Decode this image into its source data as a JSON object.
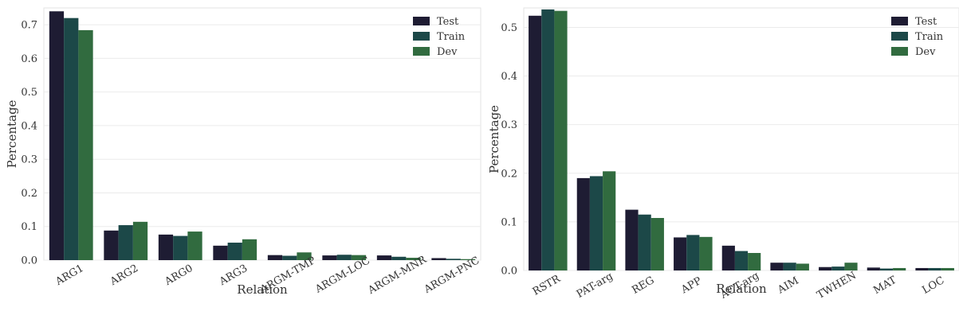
{
  "chart_data": [
    {
      "type": "bar",
      "title": "",
      "xlabel": "Relation",
      "ylabel": "Percentage",
      "categories": [
        "ARG1",
        "ARG2",
        "ARG0",
        "ARG3",
        "ARGM-TMP",
        "ARGM-LOC",
        "ARGM-MNR",
        "ARGM-PNC"
      ],
      "series": [
        {
          "name": "Test",
          "color": "#1e1c33",
          "values": [
            0.74,
            0.088,
            0.076,
            0.043,
            0.015,
            0.014,
            0.014,
            0.006
          ]
        },
        {
          "name": "Train",
          "color": "#1c4848",
          "values": [
            0.72,
            0.104,
            0.072,
            0.052,
            0.013,
            0.016,
            0.01,
            0.004
          ]
        },
        {
          "name": "Dev",
          "color": "#316b3f",
          "values": [
            0.684,
            0.114,
            0.085,
            0.062,
            0.023,
            0.015,
            0.007,
            0.003
          ]
        }
      ],
      "ylim": [
        0,
        0.75
      ],
      "yticks": [
        0.0,
        0.1,
        0.2,
        0.3,
        0.4,
        0.5,
        0.6,
        0.7
      ],
      "ytick_labels": [
        "0.0",
        "0.1",
        "0.2",
        "0.3",
        "0.4",
        "0.5",
        "0.6",
        "0.7"
      ],
      "grid": true,
      "legend_position": "top-right"
    },
    {
      "type": "bar",
      "title": "",
      "xlabel": "Relation",
      "ylabel": "Percentage",
      "categories": [
        "RSTR",
        "PAT-arg",
        "REG",
        "APP",
        "ACT-arg",
        "AIM",
        "TWHEN",
        "MAT",
        "LOC"
      ],
      "series": [
        {
          "name": "Test",
          "color": "#1e1c33",
          "values": [
            0.524,
            0.19,
            0.125,
            0.068,
            0.051,
            0.016,
            0.007,
            0.006,
            0.005
          ]
        },
        {
          "name": "Train",
          "color": "#1c4848",
          "values": [
            0.537,
            0.194,
            0.115,
            0.073,
            0.04,
            0.016,
            0.008,
            0.004,
            0.005
          ]
        },
        {
          "name": "Dev",
          "color": "#316b3f",
          "values": [
            0.534,
            0.204,
            0.108,
            0.069,
            0.036,
            0.014,
            0.016,
            0.005,
            0.005
          ]
        }
      ],
      "ylim": [
        0,
        0.54
      ],
      "yticks": [
        0.0,
        0.1,
        0.2,
        0.3,
        0.4,
        0.5
      ],
      "ytick_labels": [
        "0.0",
        "0.1",
        "0.2",
        "0.3",
        "0.4",
        "0.5"
      ],
      "grid": true,
      "legend_position": "top-right"
    }
  ]
}
